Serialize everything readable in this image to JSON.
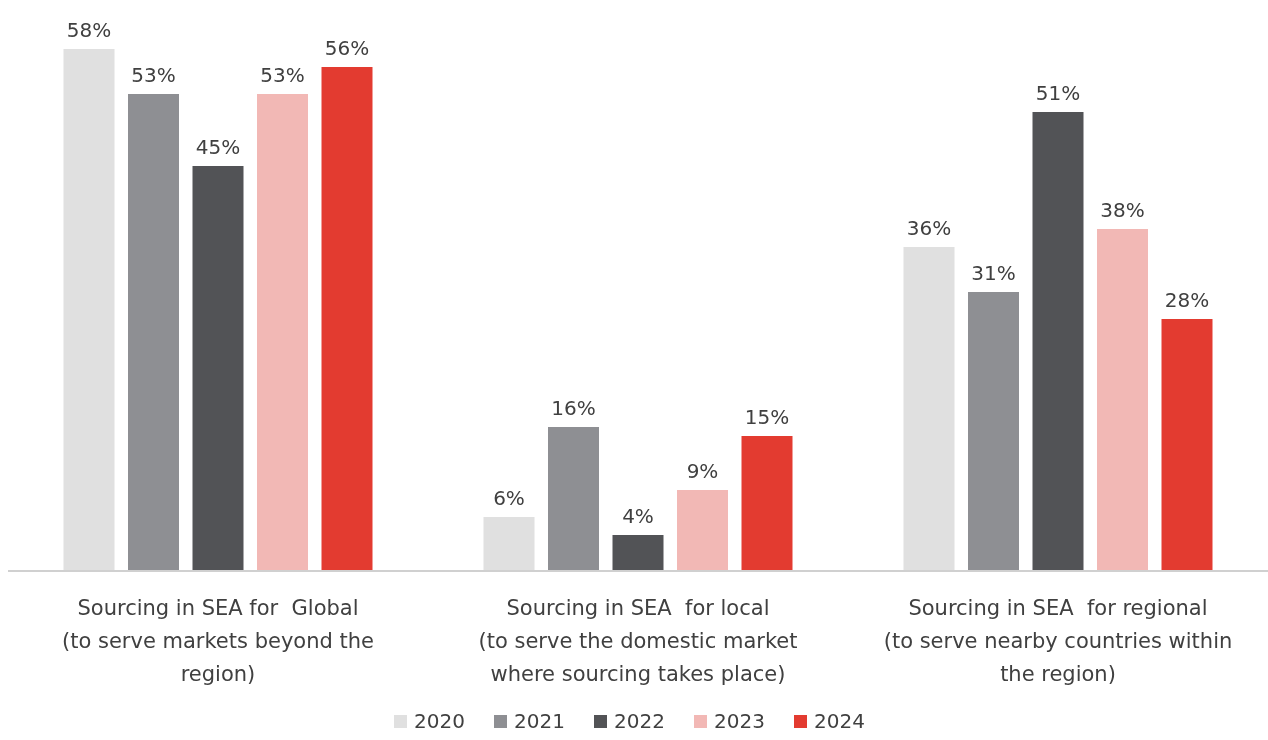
{
  "chart_data": {
    "type": "bar",
    "categories": [
      "Sourcing in SEA for  Global (to serve markets beyond the region)",
      "Sourcing in SEA  for local (to serve the domestic market where sourcing takes place)",
      "Sourcing in SEA  for regional (to serve nearby countries within the region)"
    ],
    "series": [
      {
        "name": "2020",
        "color": "#e0e0e0",
        "values": [
          58,
          6,
          36
        ],
        "value_labels": [
          "58%",
          "6%",
          "36%"
        ]
      },
      {
        "name": "2021",
        "color": "#8e8f93",
        "values": [
          53,
          16,
          31
        ],
        "value_labels": [
          "53%",
          "16%",
          "31%"
        ]
      },
      {
        "name": "2022",
        "color": "#525356",
        "values": [
          45,
          4,
          51
        ],
        "value_labels": [
          "45%",
          "4%",
          "51%"
        ]
      },
      {
        "name": "2023",
        "color": "#f2b8b5",
        "values": [
          53,
          9,
          38
        ],
        "value_labels": [
          "53%",
          "9%",
          "38%"
        ]
      },
      {
        "name": "2024",
        "color": "#e33b30",
        "values": [
          56,
          15,
          28
        ],
        "value_labels": [
          "56%",
          "15%",
          "28%"
        ]
      }
    ],
    "legend": "bottom"
  }
}
